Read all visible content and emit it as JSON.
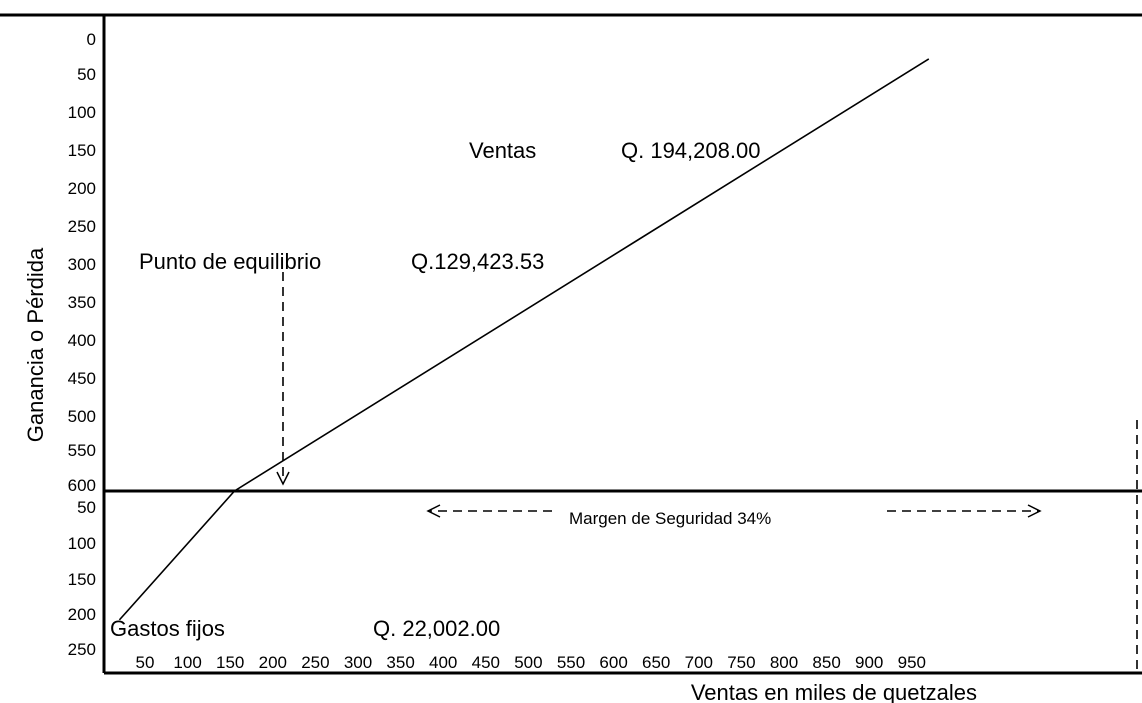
{
  "chart_data": {
    "type": "line",
    "xlabel": "Ventas en miles de quetzales",
    "ylabel": "Ganancia o Pérdida",
    "x_ticks": [
      "50",
      "100",
      "150",
      "200",
      "250",
      "300",
      "350",
      "400",
      "450",
      "500",
      "550",
      "600",
      "650",
      "700",
      "750",
      "800",
      "850",
      "900",
      "950"
    ],
    "y_ticks_positive": [
      "600",
      "550",
      "500",
      "450",
      "400",
      "350",
      "300",
      "250",
      "200",
      "150",
      "100",
      "50",
      "0"
    ],
    "y_ticks_negative": [
      "50",
      "100",
      "150",
      "200",
      "250"
    ],
    "xlim": [
      20,
      970
    ],
    "ylim": [
      -270,
      630
    ],
    "series": [
      {
        "x": [
          20,
          155,
          970
        ],
        "y": [
          -180,
          0,
          570
        ]
      }
    ],
    "annotations": {
      "ventas_label": "Ventas",
      "ventas_value": "Q. 194,208.00",
      "equilibrio_label": "Punto de equilibrio",
      "equilibrio_value": "Q.129,423.53",
      "margen_label": "Margen de Seguridad 34%",
      "gastos_label": "Gastos fijos",
      "gastos_value": "Q. 22,002.00"
    },
    "grid": false,
    "legend": "none"
  }
}
